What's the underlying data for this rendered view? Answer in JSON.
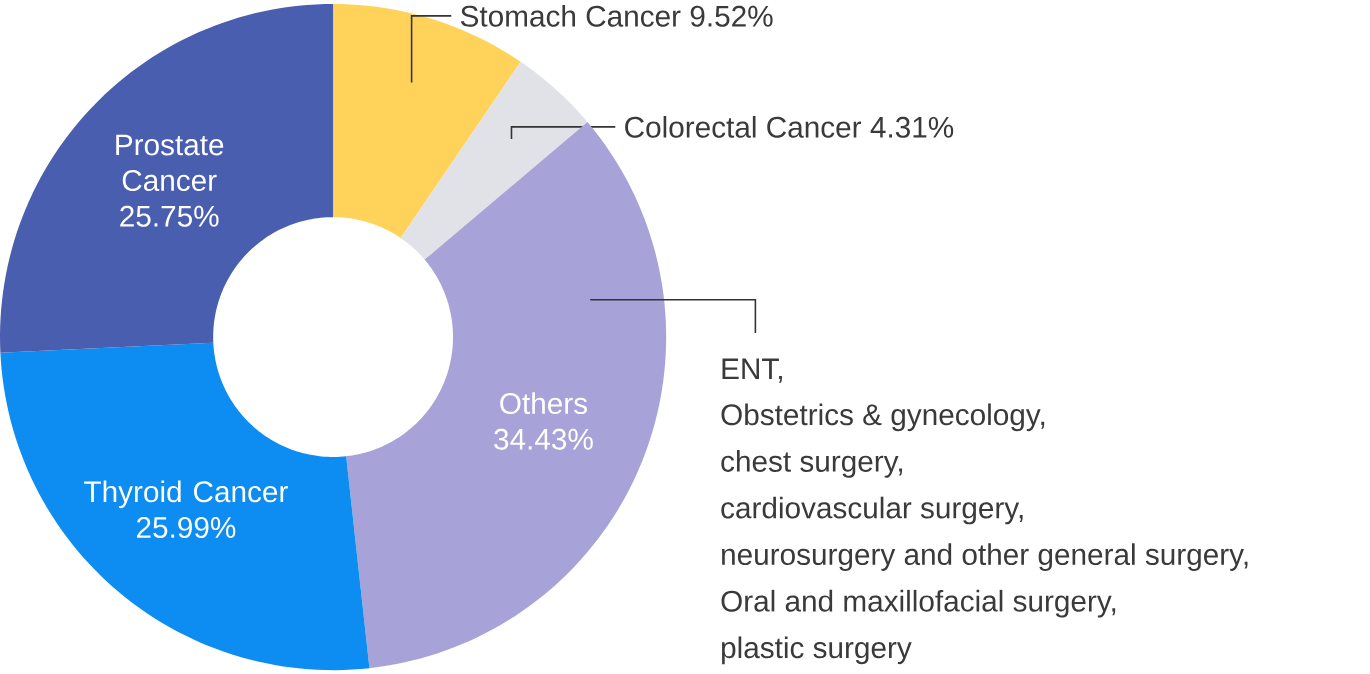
{
  "chart_data": {
    "type": "donut",
    "categories": [
      "Stomach Cancer",
      "Colorectal Cancer",
      "Others",
      "Thyroid Cancer",
      "Prostate Cancer"
    ],
    "values": [
      9.52,
      4.31,
      34.43,
      25.99,
      25.75
    ],
    "value_labels": [
      "9.52%",
      "4.31%",
      "34.43%",
      "25.99%",
      "25.75%"
    ],
    "colors": [
      "#ffd35a",
      "#e1e1e8",
      "#a7a3d8",
      "#0d8cf2",
      "#4a5eb0"
    ],
    "annotations": [
      {
        "text": "ENT,",
        "x": "Others"
      },
      "Obstetrics & gynecology,",
      "chest surgery,",
      "cardiovascular surgery,",
      "neurosurgery and other general surgery,",
      "Oral and maxillofacial surgery,",
      "plastic surgery"
    ]
  }
}
